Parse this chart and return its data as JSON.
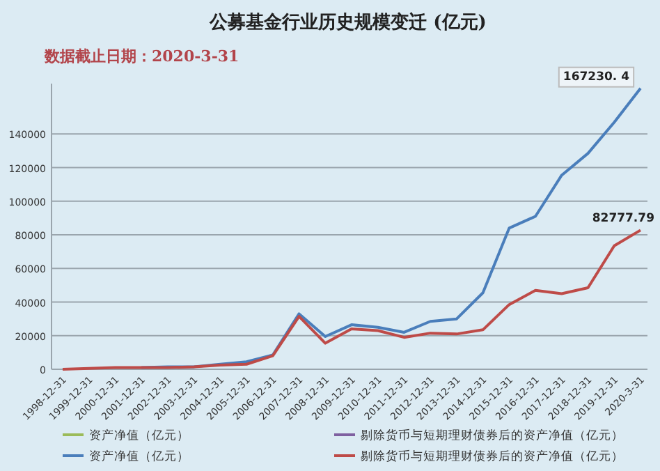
{
  "chart_data": {
    "type": "line",
    "title": "公募基金行业历史规模变迁 (亿元)",
    "subtitle": "数据截止日期：2020-3-31",
    "categories": [
      "1998-12-31",
      "1999-12-31",
      "2000-12-31",
      "2001-12-31",
      "2002-12-31",
      "2003-12-31",
      "2004-12-31",
      "2005-12-31",
      "2006-12-31",
      "2007-12-31",
      "2008-12-31",
      "2009-12-31",
      "2010-12-31",
      "2011-12-31",
      "2012-12-31",
      "2013-12-31",
      "2014-12-31",
      "2015-12-31",
      "2016-12-31",
      "2017-12-31",
      "2018-12-31",
      "2019-12-31",
      "2020-3-31"
    ],
    "series": [
      {
        "name": "资产净值（亿元）",
        "color": "#9bbb59",
        "values": [
          null,
          null,
          null,
          null,
          null,
          null,
          null,
          null,
          null,
          null,
          null,
          null,
          null,
          null,
          null,
          null,
          null,
          null,
          null,
          null,
          null,
          null,
          null
        ]
      },
      {
        "name": "剔除货币与短期理财债券后的资产净值（亿元）",
        "color": "#7f60a0",
        "values": [
          null,
          null,
          null,
          null,
          null,
          null,
          null,
          null,
          null,
          null,
          null,
          null,
          null,
          null,
          null,
          null,
          null,
          null,
          null,
          null,
          null,
          null,
          null
        ]
      },
      {
        "name": "资产净值（亿元）",
        "color": "#4a7ebb",
        "values": [
          null,
          null,
          null,
          1000,
          1500,
          1500,
          3000,
          4500,
          8500,
          33000,
          19500,
          26500,
          25000,
          22000,
          28500,
          30000,
          45500,
          84000,
          91000,
          115500,
          128500,
          147000,
          167230.4
        ],
        "value_labels": [
          null,
          null,
          null,
          null,
          null,
          null,
          null,
          null,
          null,
          null,
          null,
          null,
          null,
          null,
          null,
          null,
          null,
          null,
          null,
          null,
          null,
          null,
          "167230. 4"
        ]
      },
      {
        "name": "剔除货币与短期理财债券后的资产净值（亿元）",
        "color": "#be4b48",
        "values": [
          0,
          500,
          1000,
          1000,
          1000,
          1500,
          2500,
          3000,
          8000,
          31500,
          15500,
          24000,
          23000,
          19000,
          21500,
          21000,
          23500,
          38500,
          47000,
          45000,
          48500,
          73500,
          82777.79
        ],
        "value_labels": [
          null,
          null,
          null,
          null,
          null,
          null,
          null,
          null,
          null,
          null,
          null,
          null,
          null,
          null,
          null,
          null,
          null,
          null,
          null,
          null,
          null,
          null,
          "82777.79"
        ]
      }
    ],
    "ylim": [
      0,
      170000
    ],
    "yticks": [
      0,
      20000,
      40000,
      60000,
      80000,
      100000,
      120000,
      140000
    ],
    "grid": "y",
    "legend": "bottom",
    "marker": "none",
    "line_style": "solid"
  }
}
